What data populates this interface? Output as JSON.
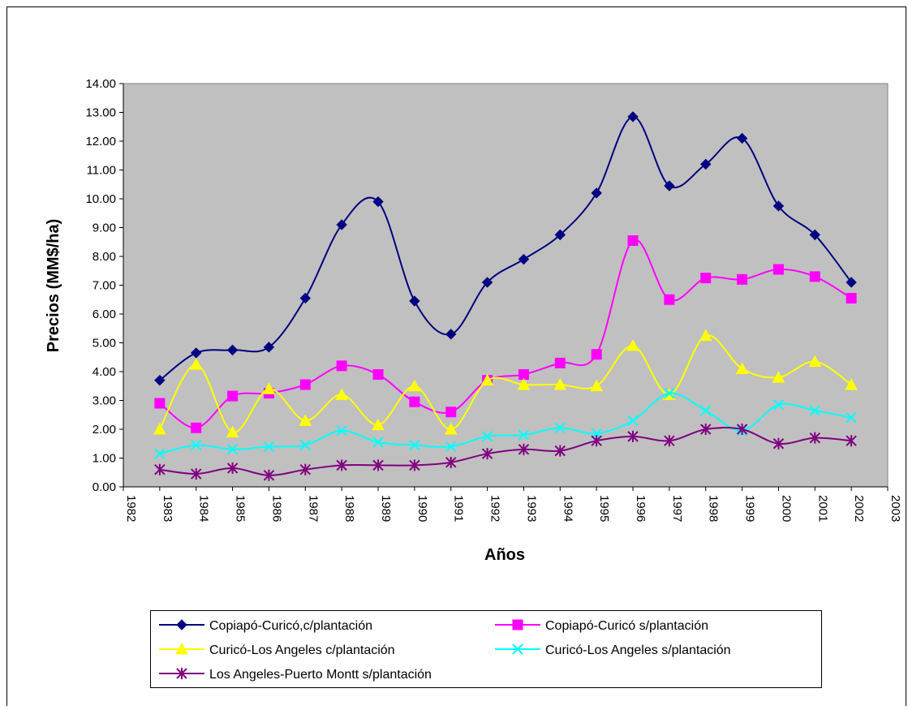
{
  "chart_data": {
    "type": "line",
    "x_label": "Años",
    "y_label": "Precios (MM$/ha)",
    "x": [
      1983,
      1984,
      1985,
      1986,
      1987,
      1988,
      1989,
      1990,
      1991,
      1992,
      1993,
      1994,
      1995,
      1996,
      1997,
      1998,
      1999,
      2000,
      2001,
      2002
    ],
    "series": [
      {
        "name": "Copiapó-Curicó,c/plantación",
        "color": "#000080",
        "marker": "diamond",
        "values": [
          3.7,
          4.65,
          4.75,
          4.85,
          6.55,
          9.1,
          9.9,
          6.45,
          5.3,
          7.1,
          7.9,
          8.75,
          10.2,
          12.85,
          10.45,
          11.2,
          12.1,
          9.75,
          8.75,
          7.1
        ]
      },
      {
        "name": "Copiapó-Curicó s/plantación",
        "color": "#ff00ff",
        "marker": "square",
        "values": [
          2.9,
          2.05,
          3.15,
          3.25,
          3.55,
          4.2,
          3.9,
          2.95,
          2.6,
          3.7,
          3.9,
          4.3,
          4.6,
          8.55,
          6.5,
          7.25,
          7.2,
          7.55,
          7.3,
          6.55
        ]
      },
      {
        "name": "Curicó-Los Angeles c/plantación",
        "color": "#ffff00",
        "marker": "triangle",
        "values": [
          2.0,
          4.25,
          1.9,
          3.4,
          2.3,
          3.2,
          2.15,
          3.5,
          2.0,
          3.7,
          3.55,
          3.55,
          3.5,
          4.9,
          3.2,
          5.25,
          4.1,
          3.8,
          4.35,
          3.55
        ]
      },
      {
        "name": "Curicó-Los Angeles s/plantación",
        "color": "#00ffff",
        "marker": "x",
        "values": [
          1.15,
          1.45,
          1.3,
          1.4,
          1.45,
          1.95,
          1.55,
          1.45,
          1.4,
          1.75,
          1.8,
          2.05,
          1.85,
          2.3,
          3.25,
          2.65,
          1.95,
          2.85,
          2.65,
          2.4
        ]
      },
      {
        "name": "Los Angeles-Puerto Montt s/plantación",
        "color": "#800080",
        "marker": "star",
        "values": [
          0.6,
          0.45,
          0.65,
          0.4,
          0.6,
          0.75,
          0.75,
          0.75,
          0.85,
          1.15,
          1.3,
          1.25,
          1.6,
          1.75,
          1.6,
          2.0,
          2.0,
          1.5,
          1.7,
          1.6
        ]
      }
    ],
    "xlim": [
      1982,
      2003
    ],
    "xticks": [
      1982,
      1983,
      1984,
      1985,
      1986,
      1987,
      1988,
      1989,
      1990,
      1991,
      1992,
      1993,
      1994,
      1995,
      1996,
      1997,
      1998,
      1999,
      2000,
      2001,
      2002,
      2003
    ],
    "ylim": [
      0,
      14
    ],
    "yticks": [
      {
        "value": 0,
        "label": "0.00"
      },
      {
        "value": 1,
        "label": "1.00"
      },
      {
        "value": 2,
        "label": "2.00"
      },
      {
        "value": 3,
        "label": "3.00"
      },
      {
        "value": 4,
        "label": "4.00"
      },
      {
        "value": 5,
        "label": "5.00"
      },
      {
        "value": 6,
        "label": "6.00"
      },
      {
        "value": 7,
        "label": "7.00"
      },
      {
        "value": 8,
        "label": "8.00"
      },
      {
        "value": 9,
        "label": "9.00"
      },
      {
        "value": 10,
        "label": "10.00"
      },
      {
        "value": 11,
        "label": "11.00"
      },
      {
        "value": 12,
        "label": "12.00"
      },
      {
        "value": 13,
        "label": "13.00"
      },
      {
        "value": 14,
        "label": "14.00"
      }
    ],
    "plot_background": "#c0c0c0",
    "smooth": true
  }
}
